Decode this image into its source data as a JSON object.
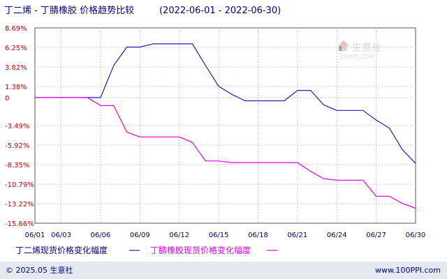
{
  "chart_data": {
    "type": "line",
    "title": "丁二烯 - 丁腈橡胶 价格趋势比较",
    "date_range": "(2022-06-01 - 2022-06-30)",
    "x": [
      "06/01",
      "06/02",
      "06/03",
      "06/04",
      "06/05",
      "06/06",
      "06/07",
      "06/08",
      "06/09",
      "06/10",
      "06/11",
      "06/12",
      "06/13",
      "06/14",
      "06/15",
      "06/16",
      "06/17",
      "06/18",
      "06/19",
      "06/20",
      "06/21",
      "06/22",
      "06/23",
      "06/24",
      "06/25",
      "06/26",
      "06/27",
      "06/28",
      "06/29",
      "06/30"
    ],
    "x_tick_labels": [
      "06/01",
      "06/03",
      "06/06",
      "06/09",
      "06/12",
      "06/15",
      "06/18",
      "06/21",
      "06/24",
      "06/27",
      "06/30"
    ],
    "y_tick_labels": [
      "8.69%",
      "6.25%",
      "3.82%",
      "1.38%",
      "0",
      "-3.49%",
      "-5.92%",
      "-8.35%",
      "-10.79%",
      "-13.22%",
      "-15.66%"
    ],
    "y_ticks": [
      8.69,
      6.25,
      3.82,
      1.38,
      0,
      -3.49,
      -5.92,
      -8.35,
      -10.79,
      -13.22,
      -15.66
    ],
    "ylim": [
      -15.66,
      8.69
    ],
    "grid": true,
    "legend_position": "bottom",
    "series": [
      {
        "name": "丁二烯现货价格变化幅度",
        "color": "#1e1ebe",
        "values": [
          0,
          0,
          0,
          0,
          0,
          0,
          4.0,
          6.3,
          6.3,
          6.7,
          6.7,
          6.7,
          6.7,
          4.0,
          1.4,
          0.4,
          -0.4,
          -0.4,
          -0.4,
          -0.4,
          0.9,
          0.9,
          -0.9,
          -1.6,
          -1.6,
          -1.6,
          -2.8,
          -3.8,
          -6.5,
          -8.2
        ]
      },
      {
        "name": "丁腈橡胶现货价格变化幅度",
        "color": "#e600e6",
        "values": [
          0,
          0,
          0,
          0,
          0,
          -1.0,
          -1.0,
          -4.3,
          -4.9,
          -4.9,
          -4.9,
          -4.9,
          -5.6,
          -7.9,
          -7.9,
          -8.1,
          -8.1,
          -8.1,
          -8.1,
          -8.1,
          -8.1,
          -9.2,
          -10.1,
          -10.3,
          -10.3,
          -10.3,
          -12.3,
          -12.3,
          -13.2,
          -13.8
        ]
      }
    ]
  },
  "watermark": {
    "brand_text": "生意社",
    "url_text": "100PPI.COM"
  },
  "footer": {
    "left_text": "© 2025.05 生意社",
    "right_text": "www.100PPI.com",
    "bg_color": "#e4e8ef"
  }
}
